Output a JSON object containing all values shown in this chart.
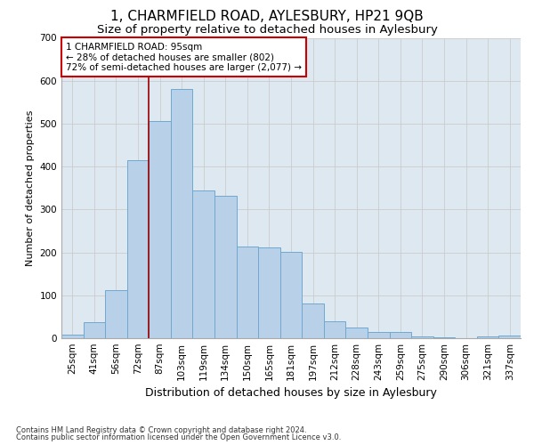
{
  "title": "1, CHARMFIELD ROAD, AYLESBURY, HP21 9QB",
  "subtitle": "Size of property relative to detached houses in Aylesbury",
  "xlabel": "Distribution of detached houses by size in Aylesbury",
  "ylabel": "Number of detached properties",
  "categories": [
    "25sqm",
    "41sqm",
    "56sqm",
    "72sqm",
    "87sqm",
    "103sqm",
    "119sqm",
    "134sqm",
    "150sqm",
    "165sqm",
    "181sqm",
    "197sqm",
    "212sqm",
    "228sqm",
    "243sqm",
    "259sqm",
    "275sqm",
    "290sqm",
    "306sqm",
    "321sqm",
    "337sqm"
  ],
  "values": [
    8,
    38,
    112,
    415,
    507,
    580,
    345,
    332,
    213,
    212,
    201,
    80,
    40,
    25,
    15,
    15,
    5,
    3,
    0,
    5,
    7
  ],
  "bar_color": "#b8d0e8",
  "bar_edge_color": "#6fa8d0",
  "annotation_box_text": "1 CHARMFIELD ROAD: 95sqm\n← 28% of detached houses are smaller (802)\n72% of semi-detached houses are larger (2,077) →",
  "annotation_box_edge_color": "#cc0000",
  "vline_x_index": 4,
  "vline_color": "#990000",
  "ylim": [
    0,
    700
  ],
  "yticks": [
    0,
    100,
    200,
    300,
    400,
    500,
    600,
    700
  ],
  "grid_color": "#cccccc",
  "bg_color": "#dde8f0",
  "footer_line1": "Contains HM Land Registry data © Crown copyright and database right 2024.",
  "footer_line2": "Contains public sector information licensed under the Open Government Licence v3.0.",
  "title_fontsize": 11,
  "subtitle_fontsize": 9.5,
  "xlabel_fontsize": 9,
  "ylabel_fontsize": 8,
  "tick_fontsize": 7.5,
  "annotation_fontsize": 7.5,
  "footer_fontsize": 6
}
